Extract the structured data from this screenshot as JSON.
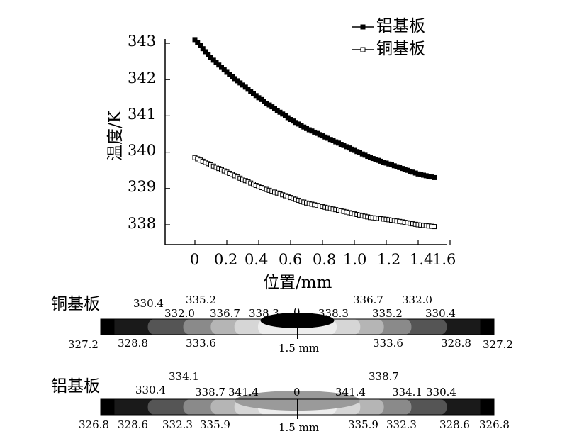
{
  "chart_data": [
    {
      "type": "line",
      "xlabel": "位置/mm",
      "ylabel": "温度/K",
      "xlim": [
        -0.1,
        1.6
      ],
      "ylim": [
        337.5,
        343.2
      ],
      "x_ticks": [
        "0",
        "0.2",
        "0.4",
        "0.6",
        "0.8",
        "1.0",
        "1.2",
        "1.4",
        "1.6"
      ],
      "y_ticks": [
        "338",
        "339",
        "340",
        "341",
        "342",
        "343"
      ],
      "legend_position": "top-right",
      "grid": false,
      "series": [
        {
          "name": "铝基板",
          "color": "#000000",
          "marker": "filled-square",
          "x": [
            0,
            0.1,
            0.2,
            0.3,
            0.4,
            0.5,
            0.6,
            0.7,
            0.8,
            0.9,
            1.0,
            1.1,
            1.2,
            1.3,
            1.4,
            1.5
          ],
          "y": [
            343.1,
            342.6,
            342.2,
            341.85,
            341.5,
            341.2,
            340.9,
            340.65,
            340.45,
            340.25,
            340.05,
            339.85,
            339.7,
            339.55,
            339.4,
            339.3
          ]
        },
        {
          "name": "铜基板",
          "color": "#000000",
          "marker": "open-square",
          "x": [
            0,
            0.1,
            0.2,
            0.3,
            0.4,
            0.5,
            0.6,
            0.7,
            0.8,
            0.9,
            1.0,
            1.1,
            1.2,
            1.3,
            1.4,
            1.5
          ],
          "y": [
            339.85,
            339.65,
            339.45,
            339.25,
            339.05,
            338.9,
            338.75,
            338.6,
            338.5,
            338.4,
            338.3,
            338.2,
            338.15,
            338.08,
            338.0,
            337.95
          ]
        }
      ]
    },
    {
      "type": "heatmap",
      "title": "铜基板",
      "center_label": "0",
      "scale_label": "1.5 mm",
      "top_labels": [
        "330.4",
        "335.2",
        "332.0",
        "336.7",
        "338.3",
        "338.3",
        "336.7",
        "332.0",
        "335.2",
        "330.4"
      ],
      "bottom_labels": [
        "327.2",
        "328.8",
        "333.6",
        "333.6",
        "328.8",
        "327.2"
      ],
      "gray_bands": [
        "#000000",
        "#1a1a1a",
        "#555555",
        "#8a8a8a",
        "#b5b5b5",
        "#d6d6d6",
        "#ededed"
      ],
      "hot_spot_color": "#000000"
    },
    {
      "type": "heatmap",
      "title": "铝基板",
      "center_label": "0",
      "scale_label": "1.5 mm",
      "top_labels": [
        "334.1",
        "330.4",
        "338.7",
        "341.4",
        "341.4",
        "338.7",
        "334.1",
        "330.4"
      ],
      "bottom_labels": [
        "326.8",
        "328.6",
        "332.3",
        "335.9",
        "335.9",
        "332.3",
        "328.6",
        "326.8"
      ],
      "gray_bands": [
        "#000000",
        "#1a1a1a",
        "#555555",
        "#8a8a8a",
        "#b5b5b5",
        "#d6d6d6",
        "#ededed"
      ],
      "hot_spot_color": "#9a9a9a"
    }
  ]
}
